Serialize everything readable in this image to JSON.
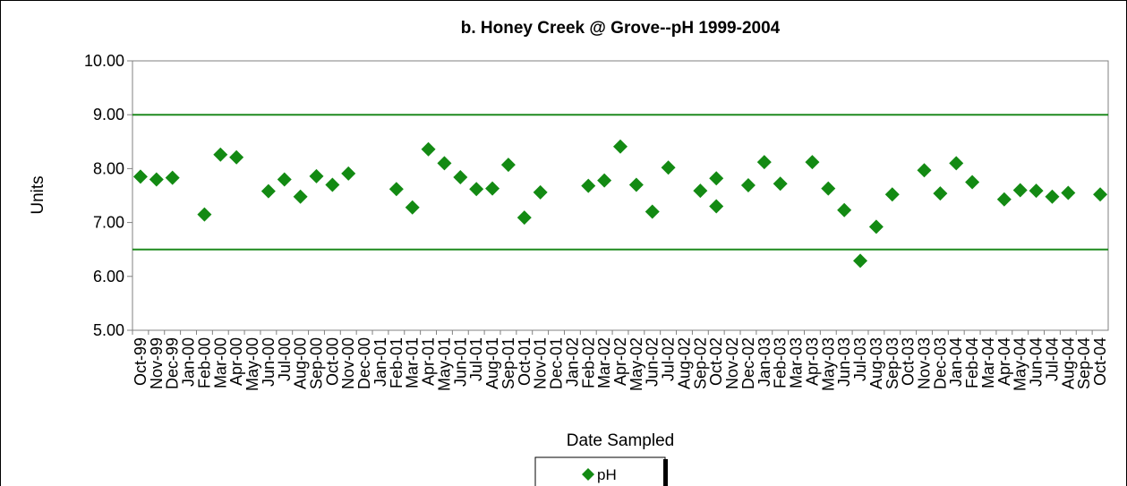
{
  "chart_data": {
    "type": "scatter",
    "title": "b.  Honey Creek @ Grove--pH 1999-2004",
    "y_label": "Units",
    "x_label": "Date Sampled",
    "categories": [
      "Oct-99",
      "Nov-99",
      "Dec-99",
      "Jan-00",
      "Feb-00",
      "Mar-00",
      "Apr-00",
      "May-00",
      "Jun-00",
      "Jul-00",
      "Aug-00",
      "Sep-00",
      "Oct-00",
      "Nov-00",
      "Dec-00",
      "Jan-01",
      "Feb-01",
      "Mar-01",
      "Apr-01",
      "May-01",
      "Jun-01",
      "Jul-01",
      "Aug-01",
      "Sep-01",
      "Oct-01",
      "Nov-01",
      "Dec-01",
      "Jan-02",
      "Feb-02",
      "Mar-02",
      "Apr-02",
      "May-02",
      "Jun-02",
      "Jul-02",
      "Aug-02",
      "Sep-02",
      "Oct-02",
      "Nov-02",
      "Dec-02",
      "Jan-03",
      "Feb-03",
      "Mar-03",
      "Apr-03",
      "May-03",
      "Jun-03",
      "Jul-03",
      "Aug-03",
      "Sep-03",
      "Oct-03",
      "Nov-03",
      "Dec-03",
      "Jan-04",
      "Feb-04",
      "Mar-04",
      "Apr-04",
      "May-04",
      "Jun-04",
      "Jul-04",
      "Aug-04",
      "Sep-04",
      "Oct-04"
    ],
    "series": [
      {
        "name": "pH",
        "color": "#138a13",
        "x": [
          "Oct-99",
          "Nov-99",
          "Dec-99",
          "Feb-00",
          "Mar-00",
          "Apr-00",
          "Jun-00",
          "Jul-00",
          "Aug-00",
          "Sep-00",
          "Oct-00",
          "Nov-00",
          "Feb-01",
          "Mar-01",
          "Apr-01",
          "May-01",
          "Jun-01",
          "Jul-01",
          "Aug-01",
          "Sep-01",
          "Oct-01",
          "Nov-01",
          "Feb-02",
          "Mar-02",
          "Apr-02",
          "May-02",
          "Jun-02",
          "Jul-02",
          "Sep-02",
          "Oct-02",
          "Oct-02",
          "Dec-02",
          "Jan-03",
          "Feb-03",
          "Apr-03",
          "May-03",
          "Jun-03",
          "Jul-03",
          "Aug-03",
          "Sep-03",
          "Nov-03",
          "Dec-03",
          "Jan-04",
          "Feb-04",
          "Apr-04",
          "May-04",
          "Jun-04",
          "Jul-04",
          "Aug-04",
          "Oct-04"
        ],
        "values": [
          7.85,
          7.8,
          7.83,
          7.15,
          8.26,
          8.21,
          7.58,
          7.8,
          7.48,
          7.86,
          7.7,
          7.91,
          7.62,
          7.28,
          8.36,
          8.1,
          7.84,
          7.62,
          7.63,
          8.07,
          7.09,
          7.56,
          7.68,
          7.78,
          8.41,
          7.7,
          7.2,
          8.02,
          7.59,
          7.82,
          7.3,
          7.69,
          8.12,
          7.72,
          8.12,
          7.63,
          7.23,
          6.29,
          6.92,
          7.52,
          7.97,
          7.54,
          8.1,
          7.75,
          7.43,
          7.6,
          7.59,
          7.48,
          7.55,
          7.52
        ]
      }
    ],
    "reference_lines": [
      9,
      6.5
    ],
    "reference_color": "#1f8a1f",
    "ylim": [
      5,
      10
    ],
    "yticks": [
      {
        "value": 5,
        "label": "5.00"
      },
      {
        "value": 6,
        "label": "6.00"
      },
      {
        "value": 7,
        "label": "7.00"
      },
      {
        "value": 8,
        "label": "8.00"
      },
      {
        "value": 9,
        "label": "9.00"
      },
      {
        "value": 10,
        "label": "10.00"
      }
    ]
  }
}
